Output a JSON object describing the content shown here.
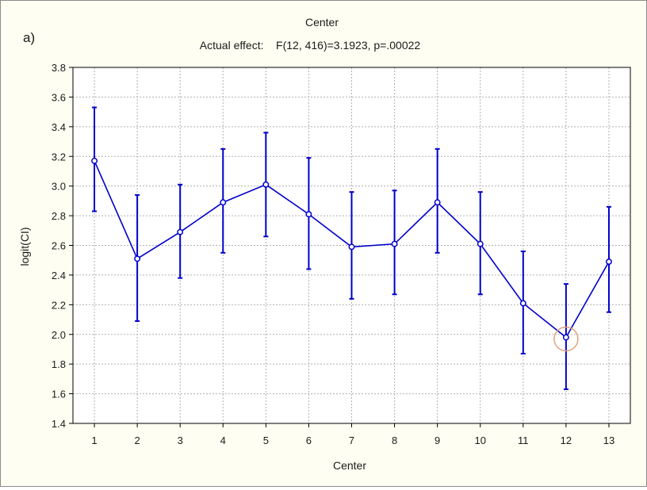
{
  "panel_label": "a)",
  "chart_data": {
    "type": "line",
    "title": "Center",
    "subtitle": "Actual effect:    F(12, 416)=3.1923, p=.00022",
    "xlabel": "Center",
    "ylabel": "logit(CI)",
    "categories": [
      "1",
      "2",
      "3",
      "4",
      "5",
      "6",
      "7",
      "8",
      "9",
      "10",
      "11",
      "12",
      "13"
    ],
    "series": [
      {
        "values": [
          3.17,
          2.51,
          2.69,
          2.89,
          3.01,
          2.81,
          2.59,
          2.61,
          2.89,
          2.61,
          2.21,
          1.98,
          2.49
        ],
        "upper": [
          3.53,
          2.94,
          3.01,
          3.25,
          3.36,
          3.19,
          2.96,
          2.97,
          3.25,
          2.96,
          2.56,
          2.34,
          2.86
        ],
        "lower": [
          2.83,
          2.09,
          2.38,
          2.55,
          2.66,
          2.44,
          2.24,
          2.27,
          2.55,
          2.27,
          1.87,
          1.63,
          2.15
        ]
      }
    ],
    "ylim": [
      1.4,
      3.8
    ],
    "yticks": [
      "1.4",
      "1.6",
      "1.8",
      "2.0",
      "2.2",
      "2.4",
      "2.6",
      "2.8",
      "3.0",
      "3.2",
      "3.4",
      "3.6",
      "3.8"
    ],
    "grid": true,
    "highlight": {
      "category": "12",
      "color": "#e3a27a"
    },
    "colors": {
      "series": "#0000cc",
      "background": "#fffef2",
      "grid": "#b0b0b0"
    }
  }
}
